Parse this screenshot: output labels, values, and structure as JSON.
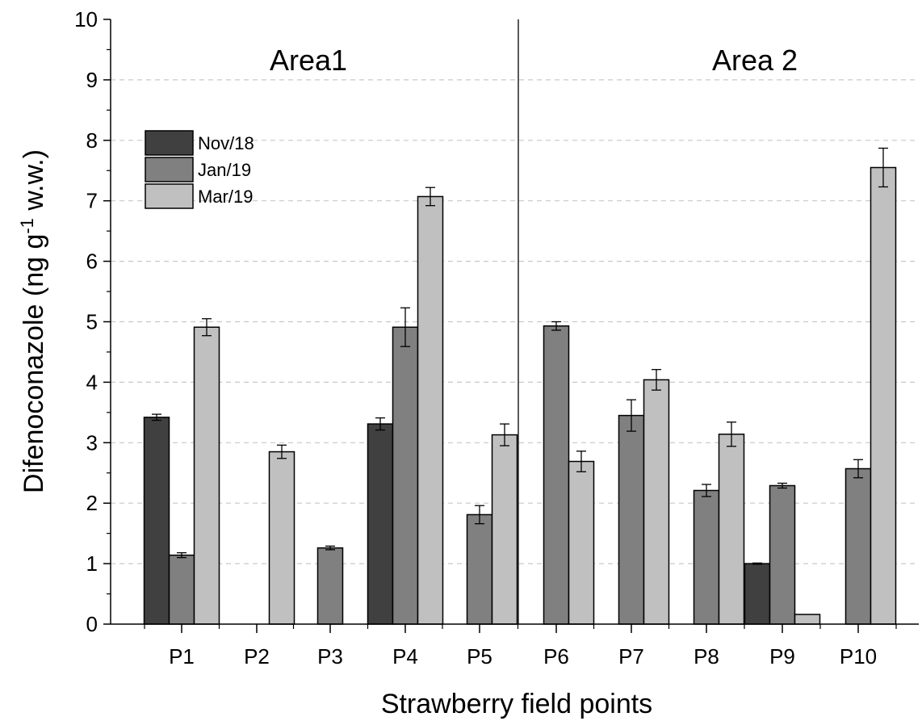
{
  "chart_data": {
    "type": "bar",
    "categories": [
      "P1",
      "P2",
      "P3",
      "P4",
      "P5",
      "P6",
      "P7",
      "P8",
      "P9",
      "P10"
    ],
    "series": [
      {
        "name": "Nov/18",
        "color": "#404040",
        "values": [
          3.42,
          null,
          null,
          3.31,
          null,
          null,
          null,
          null,
          1.0,
          null
        ],
        "errors": [
          0.05,
          null,
          null,
          0.1,
          null,
          null,
          null,
          null,
          0.01,
          null
        ]
      },
      {
        "name": "Jan/19",
        "color": "#808080",
        "values": [
          1.14,
          null,
          1.26,
          4.91,
          1.81,
          4.93,
          3.45,
          2.21,
          2.29,
          2.57
        ],
        "errors": [
          0.04,
          null,
          0.03,
          0.32,
          0.15,
          0.07,
          0.26,
          0.1,
          0.04,
          0.15
        ]
      },
      {
        "name": "Mar/19",
        "color": "#c0c0c0",
        "values": [
          4.91,
          2.85,
          null,
          7.07,
          3.13,
          2.69,
          4.04,
          3.14,
          0.16,
          7.55
        ],
        "errors": [
          0.14,
          0.11,
          null,
          0.15,
          0.18,
          0.17,
          0.17,
          0.2,
          null,
          0.32
        ]
      }
    ],
    "xlabel": "Strawberry field points",
    "ylabel_main": "Difenoconazole (ng g",
    "ylabel_sup": "-1",
    "ylabel_tail": " w.w.)",
    "ylim": [
      0,
      10
    ],
    "yticks": [
      "0",
      "1",
      "2",
      "3",
      "4",
      "5",
      "6",
      "7",
      "8",
      "9",
      "10"
    ],
    "grid": "horizontal-dashed",
    "legend_position": "top-left",
    "area_labels": [
      "Area1",
      "Area 2"
    ],
    "area_divider_after": "P5"
  }
}
